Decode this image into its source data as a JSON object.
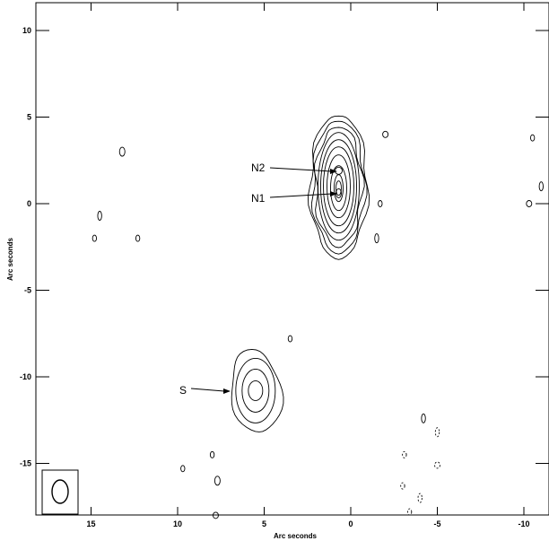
{
  "chart_data": {
    "type": "contour",
    "xlabel": "Arc seconds",
    "ylabel": "Arc seconds",
    "xlim": [
      18,
      -11
    ],
    "ylim": [
      -18,
      11
    ],
    "x_axis_reversed": true,
    "x_ticks": [
      15,
      10,
      5,
      0,
      -5,
      -10
    ],
    "x_tick_labels": [
      "15",
      "10",
      "5",
      "0",
      "-5",
      "-10"
    ],
    "y_ticks": [
      10,
      5,
      0,
      -5,
      -10,
      -15
    ],
    "y_tick_labels": [
      "10",
      "5",
      "0",
      "-5",
      "-10",
      "-15"
    ],
    "grid": false,
    "annotations": [
      {
        "text": "N2",
        "target": [
          0.7,
          1.9
        ]
      },
      {
        "text": "N1",
        "target": [
          0.7,
          0.6
        ]
      },
      {
        "text": "S",
        "target": [
          7.0,
          -10.8
        ]
      }
    ],
    "sources": [
      {
        "name": "N",
        "center": [
          0.7,
          1.0
        ],
        "levels": 10
      },
      {
        "name": "S",
        "center": [
          5.5,
          -10.8
        ],
        "levels": 4
      }
    ],
    "noise_blobs": [
      [
        13.2,
        3.0
      ],
      [
        12.3,
        -2.0
      ],
      [
        14.8,
        -2.0
      ],
      [
        14.5,
        -0.7
      ],
      [
        -2.0,
        4.0
      ],
      [
        -1.7,
        0.0
      ],
      [
        -1.5,
        -2.0
      ],
      [
        -10.5,
        3.8
      ],
      [
        -10.3,
        0.0
      ],
      [
        -11.0,
        1.0
      ],
      [
        3.5,
        -7.8
      ],
      [
        8.0,
        -14.5
      ],
      [
        7.7,
        -16.0
      ],
      [
        9.7,
        -15.3
      ],
      [
        -3.1,
        -14.5
      ],
      [
        -5.0,
        -13.2
      ],
      [
        -5.0,
        -15.1
      ],
      [
        -3.0,
        -16.3
      ],
      [
        -4.0,
        -17.0
      ],
      [
        -3.4,
        -17.8
      ],
      [
        7.8,
        -18.0
      ],
      [
        -4.2,
        -12.4
      ]
    ],
    "beam": {
      "center": [
        16.6,
        -16.7
      ]
    }
  }
}
